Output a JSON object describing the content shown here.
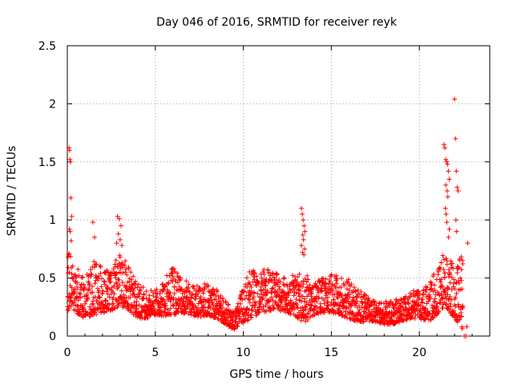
{
  "chart_data": {
    "type": "scatter",
    "title": "Day 046 of 2016, SRMTID for receiver reyk",
    "xlabel": "GPS time / hours",
    "ylabel": "SRMTID / TECUs",
    "xlim": [
      0,
      24
    ],
    "ylim": [
      0,
      2.5
    ],
    "x_ticks": [
      0,
      5,
      10,
      15,
      20
    ],
    "y_ticks": [
      0,
      0.5,
      1,
      1.5,
      2,
      2.5
    ],
    "x_tick_labels": [
      "0",
      "5",
      "10",
      "15",
      "20"
    ],
    "y_tick_labels": [
      "0",
      "0.5",
      "1",
      "1.5",
      "2",
      "2.5"
    ],
    "grid": true,
    "marker": "+",
    "series": [
      {
        "name": "SRMTID",
        "color": "#ff0000",
        "envelope_hours": [
          0,
          0.5,
          1,
          1.5,
          2,
          2.5,
          3,
          3.5,
          4,
          4.5,
          5,
          5.5,
          6,
          6.5,
          7,
          7.5,
          8,
          8.5,
          9,
          9.5,
          10,
          10.5,
          11,
          11.5,
          12,
          12.5,
          13,
          13.5,
          14,
          14.5,
          15,
          15.5,
          16,
          16.5,
          17,
          17.5,
          18,
          18.5,
          19,
          19.5,
          20,
          20.5,
          21,
          21.5,
          22,
          22.5
        ],
        "envelope_low": [
          0.22,
          0.2,
          0.15,
          0.18,
          0.2,
          0.22,
          0.25,
          0.22,
          0.15,
          0.15,
          0.18,
          0.17,
          0.18,
          0.2,
          0.18,
          0.16,
          0.18,
          0.15,
          0.1,
          0.05,
          0.12,
          0.15,
          0.2,
          0.22,
          0.22,
          0.2,
          0.15,
          0.12,
          0.18,
          0.2,
          0.2,
          0.18,
          0.15,
          0.12,
          0.12,
          0.12,
          0.1,
          0.1,
          0.12,
          0.15,
          0.15,
          0.12,
          0.18,
          0.25,
          0.15,
          0.05
        ],
        "envelope_high": [
          0.75,
          0.6,
          0.5,
          0.65,
          0.6,
          0.55,
          0.75,
          0.6,
          0.45,
          0.4,
          0.4,
          0.5,
          0.6,
          0.5,
          0.45,
          0.45,
          0.45,
          0.4,
          0.3,
          0.2,
          0.45,
          0.6,
          0.6,
          0.6,
          0.55,
          0.5,
          0.55,
          0.55,
          0.45,
          0.5,
          0.55,
          0.5,
          0.5,
          0.4,
          0.35,
          0.3,
          0.3,
          0.3,
          0.35,
          0.4,
          0.4,
          0.45,
          0.6,
          0.75,
          0.6,
          0.75
        ],
        "bursts": [
          {
            "x": [
              0.1,
              0.12,
              0.15,
              0.18,
              0.2,
              0.25,
              0.12,
              0.16,
              0.22
            ],
            "y": [
              1.62,
              1.6,
              1.52,
              1.5,
              1.19,
              1.03,
              0.92,
              0.9,
              0.82
            ]
          },
          {
            "x": [
              1.45,
              1.55,
              2.85,
              2.95,
              3.05,
              2.9,
              3.0,
              3.1,
              2.8
            ],
            "y": [
              0.98,
              0.85,
              1.03,
              1.01,
              0.95,
              0.88,
              0.83,
              0.78,
              0.8
            ]
          },
          {
            "x": [
              13.3,
              13.35,
              13.4,
              13.45,
              13.5,
              13.38,
              13.42,
              13.3,
              13.48,
              13.36,
              13.44
            ],
            "y": [
              1.1,
              1.05,
              1.0,
              0.95,
              0.9,
              0.87,
              0.83,
              0.78,
              0.75,
              0.72,
              0.7
            ]
          },
          {
            "x": [
              21.4,
              21.45,
              21.5,
              21.55,
              21.6,
              21.65,
              21.7,
              21.5,
              21.58,
              21.62,
              21.48,
              21.52,
              21.56,
              21.7,
              21.66
            ],
            "y": [
              1.65,
              1.62,
              1.52,
              1.5,
              1.48,
              1.42,
              1.35,
              1.3,
              1.25,
              1.2,
              1.1,
              1.05,
              0.98,
              0.92,
              0.85
            ]
          },
          {
            "x": [
              22.0,
              22.05,
              22.1,
              22.15,
              22.2,
              22.08,
              22.12
            ],
            "y": [
              2.04,
              1.7,
              1.42,
              1.28,
              1.25,
              1.0,
              0.9
            ]
          },
          {
            "x": [
              22.55,
              22.65,
              22.7,
              22.75
            ],
            "y": [
              0.0,
              0.0,
              0.08,
              0.8
            ]
          }
        ]
      }
    ]
  }
}
